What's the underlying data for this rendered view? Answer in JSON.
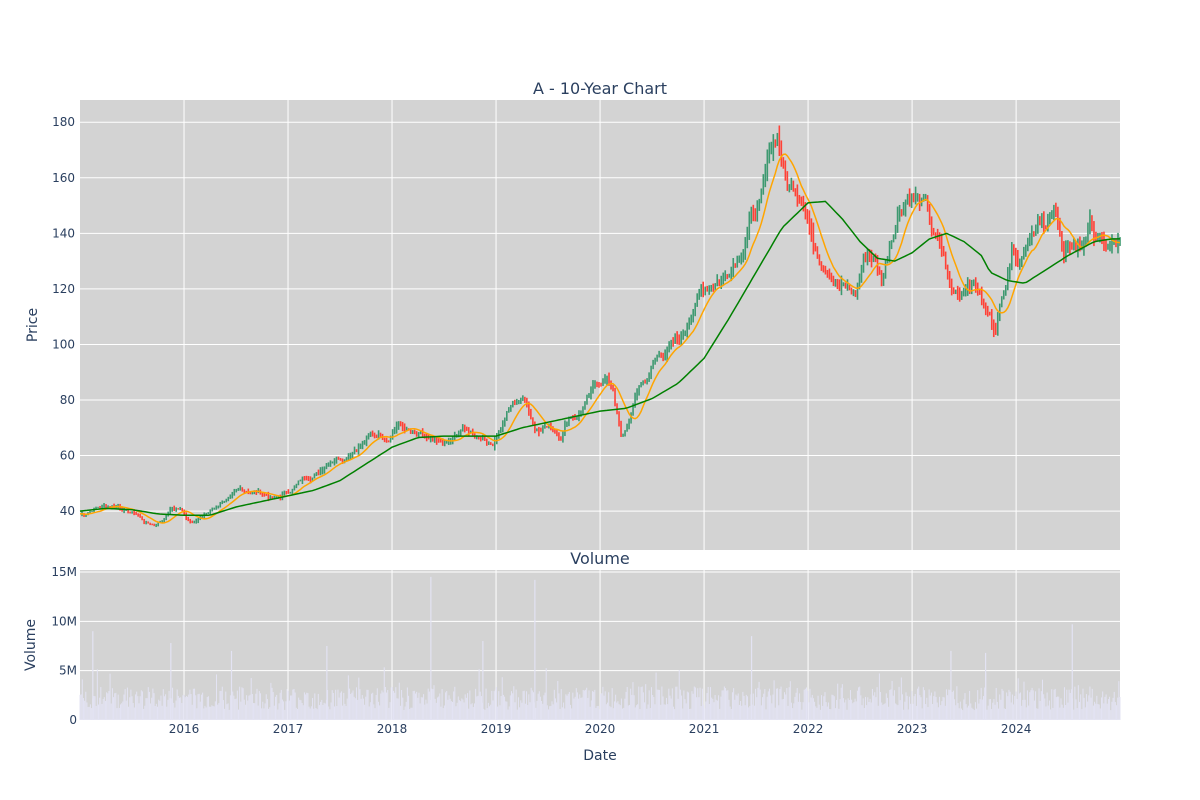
{
  "chart_data": [
    {
      "type": "candlestick",
      "title": "A - 10-Year Chart",
      "ylabel": "Price",
      "ylim": [
        26,
        188
      ],
      "yticks": [
        40,
        60,
        80,
        100,
        120,
        140,
        160,
        180
      ],
      "xlim": [
        "2015-01-01",
        "2024-12-31"
      ],
      "grid": true,
      "legend": "none",
      "colors": {
        "up": "#3d9970",
        "down": "#ff4136",
        "ma_short": "#ffa500",
        "ma_long": "#008000",
        "plot_bg": "#d3d3d3",
        "grid": "#ffffff"
      },
      "series": [
        {
          "kind": "price",
          "points": [
            [
              "2015-01",
              39
            ],
            [
              "2015-02",
              41
            ],
            [
              "2015-03",
              42
            ],
            [
              "2015-04",
              42
            ],
            [
              "2015-05",
              42
            ],
            [
              "2015-06",
              40
            ],
            [
              "2015-07",
              39
            ],
            [
              "2015-08",
              36
            ],
            [
              "2015-09",
              35
            ],
            [
              "2015-10",
              37
            ],
            [
              "2015-11",
              41
            ],
            [
              "2015-12",
              41
            ],
            [
              "2016-01",
              37
            ],
            [
              "2016-02",
              37
            ],
            [
              "2016-03",
              39
            ],
            [
              "2016-04",
              41
            ],
            [
              "2016-05",
              44
            ],
            [
              "2016-06",
              45
            ],
            [
              "2016-07",
              47
            ],
            [
              "2016-08",
              47
            ],
            [
              "2016-09",
              47
            ],
            [
              "2016-10",
              46
            ],
            [
              "2016-11",
              44
            ],
            [
              "2016-12",
              46
            ],
            [
              "2017-01",
              48
            ],
            [
              "2017-02",
              51
            ],
            [
              "2017-03",
              53
            ],
            [
              "2017-04",
              54
            ],
            [
              "2017-05",
              58
            ],
            [
              "2017-06",
              60
            ],
            [
              "2017-07",
              60
            ],
            [
              "2017-08",
              63
            ],
            [
              "2017-09",
              65
            ],
            [
              "2017-10",
              67
            ],
            [
              "2017-11",
              68
            ],
            [
              "2017-12",
              67
            ],
            [
              "2018-01",
              72
            ],
            [
              "2018-02",
              70
            ],
            [
              "2018-03",
              67
            ],
            [
              "2018-04",
              66
            ],
            [
              "2018-05",
              64
            ],
            [
              "2018-06",
              63
            ],
            [
              "2018-07",
              64
            ],
            [
              "2018-08",
              66
            ],
            [
              "2018-09",
              70
            ],
            [
              "2018-10",
              66
            ],
            [
              "2018-11",
              67
            ],
            [
              "2018-12",
              64
            ],
            [
              "2019-01",
              71
            ],
            [
              "2019-02",
              77
            ],
            [
              "2019-03",
              80
            ],
            [
              "2019-04",
              80
            ],
            [
              "2019-05",
              70
            ],
            [
              "2019-06",
              72
            ],
            [
              "2019-07",
              70
            ],
            [
              "2019-08",
              68
            ],
            [
              "2019-09",
              75
            ],
            [
              "2019-10",
              75
            ],
            [
              "2019-11",
              80
            ],
            [
              "2019-12",
              85
            ],
            [
              "2020-01",
              88
            ],
            [
              "2020-02",
              84
            ],
            [
              "2020-03",
              65
            ],
            [
              "2020-04",
              74
            ],
            [
              "2020-05",
              85
            ],
            [
              "2020-06",
              88
            ],
            [
              "2020-07",
              95
            ],
            [
              "2020-08",
              98
            ],
            [
              "2020-09",
              100
            ],
            [
              "2020-10",
              102
            ],
            [
              "2020-11",
              112
            ],
            [
              "2020-12",
              118
            ],
            [
              "2021-01",
              122
            ],
            [
              "2021-02",
              124
            ],
            [
              "2021-03",
              125
            ],
            [
              "2021-04",
              132
            ],
            [
              "2021-05",
              137
            ],
            [
              "2021-06",
              147
            ],
            [
              "2021-07",
              150
            ],
            [
              "2021-08",
              168
            ],
            [
              "2021-09",
              176
            ],
            [
              "2021-10",
              157
            ],
            [
              "2021-11",
              157
            ],
            [
              "2021-12",
              155
            ],
            [
              "2022-01",
              138
            ],
            [
              "2022-02",
              132
            ],
            [
              "2022-03",
              130
            ],
            [
              "2022-04",
              122
            ],
            [
              "2022-05",
              120
            ],
            [
              "2022-06",
              118
            ],
            [
              "2022-07",
              132
            ],
            [
              "2022-08",
              132
            ],
            [
              "2022-09",
              123
            ],
            [
              "2022-10",
              138
            ],
            [
              "2022-11",
              150
            ],
            [
              "2022-12",
              155
            ],
            [
              "2023-01",
              153
            ],
            [
              "2023-02",
              150
            ],
            [
              "2023-03",
              138
            ],
            [
              "2023-04",
              133
            ],
            [
              "2023-05",
              118
            ],
            [
              "2023-06",
              118
            ],
            [
              "2023-07",
              124
            ],
            [
              "2023-08",
              122
            ],
            [
              "2023-09",
              112
            ],
            [
              "2023-10",
              107
            ],
            [
              "2023-11",
              118
            ],
            [
              "2023-12",
              136
            ],
            [
              "2024-01",
              132
            ],
            [
              "2024-02",
              142
            ],
            [
              "2024-03",
              147
            ],
            [
              "2024-04",
              140
            ],
            [
              "2024-05",
              152
            ],
            [
              "2024-06",
              130
            ],
            [
              "2024-07",
              135
            ],
            [
              "2024-08",
              135
            ],
            [
              "2024-09",
              143
            ],
            [
              "2024-10",
              138
            ],
            [
              "2024-11",
              134
            ],
            [
              "2024-12",
              135
            ]
          ]
        },
        {
          "kind": "ma_long",
          "points": [
            [
              "2015-01",
              40
            ],
            [
              "2015-04",
              41
            ],
            [
              "2015-07",
              40.5
            ],
            [
              "2015-10",
              39
            ],
            [
              "2016-01",
              38.5
            ],
            [
              "2016-04",
              38.5
            ],
            [
              "2016-07",
              41.5
            ],
            [
              "2016-10",
              43.5
            ],
            [
              "2017-01",
              45.5
            ],
            [
              "2017-04",
              47.5
            ],
            [
              "2017-07",
              51
            ],
            [
              "2017-10",
              57
            ],
            [
              "2018-01",
              63
            ],
            [
              "2018-04",
              66.5
            ],
            [
              "2018-07",
              67
            ],
            [
              "2018-10",
              67
            ],
            [
              "2019-01",
              67
            ],
            [
              "2019-04",
              70
            ],
            [
              "2019-07",
              72
            ],
            [
              "2019-10",
              74
            ],
            [
              "2020-01",
              76
            ],
            [
              "2020-04",
              77
            ],
            [
              "2020-07",
              80.5
            ],
            [
              "2020-10",
              86
            ],
            [
              "2021-01",
              95
            ],
            [
              "2021-04",
              110
            ],
            [
              "2021-07",
              126
            ],
            [
              "2021-10",
              142
            ],
            [
              "2022-01",
              151
            ],
            [
              "2022-03",
              151.5
            ],
            [
              "2022-05",
              145
            ],
            [
              "2022-07",
              137
            ],
            [
              "2022-09",
              131
            ],
            [
              "2022-11",
              130
            ],
            [
              "2023-01",
              133
            ],
            [
              "2023-03",
              138
            ],
            [
              "2023-05",
              140
            ],
            [
              "2023-07",
              137
            ],
            [
              "2023-09",
              132
            ],
            [
              "2023-10",
              126
            ],
            [
              "2023-12",
              123
            ],
            [
              "2024-02",
              122
            ],
            [
              "2024-04",
              126
            ],
            [
              "2024-07",
              132
            ],
            [
              "2024-10",
              137
            ],
            [
              "2024-12",
              138
            ]
          ]
        }
      ]
    },
    {
      "type": "bar",
      "title": "Volume",
      "xlabel": "Date",
      "ylabel": "Volume",
      "ylim": [
        0,
        15200000
      ],
      "yticks": [
        0,
        5000000,
        10000000,
        15000000
      ],
      "ytick_labels": [
        "0",
        "5M",
        "10M",
        "15M"
      ],
      "xticks": [
        "2016",
        "2017",
        "2018",
        "2019",
        "2020",
        "2021",
        "2022",
        "2023",
        "2024"
      ],
      "colors": {
        "bar": "#e3e3f3"
      },
      "spikes": [
        [
          "2015-02",
          9000000
        ],
        [
          "2015-11",
          7800000
        ],
        [
          "2016-06",
          7000000
        ],
        [
          "2017-05",
          7500000
        ],
        [
          "2018-05",
          14500000
        ],
        [
          "2018-11",
          8000000
        ],
        [
          "2019-05",
          14200000
        ],
        [
          "2021-06",
          8500000
        ],
        [
          "2023-05",
          7000000
        ],
        [
          "2023-09",
          6800000
        ],
        [
          "2024-07",
          9700000
        ]
      ]
    }
  ]
}
